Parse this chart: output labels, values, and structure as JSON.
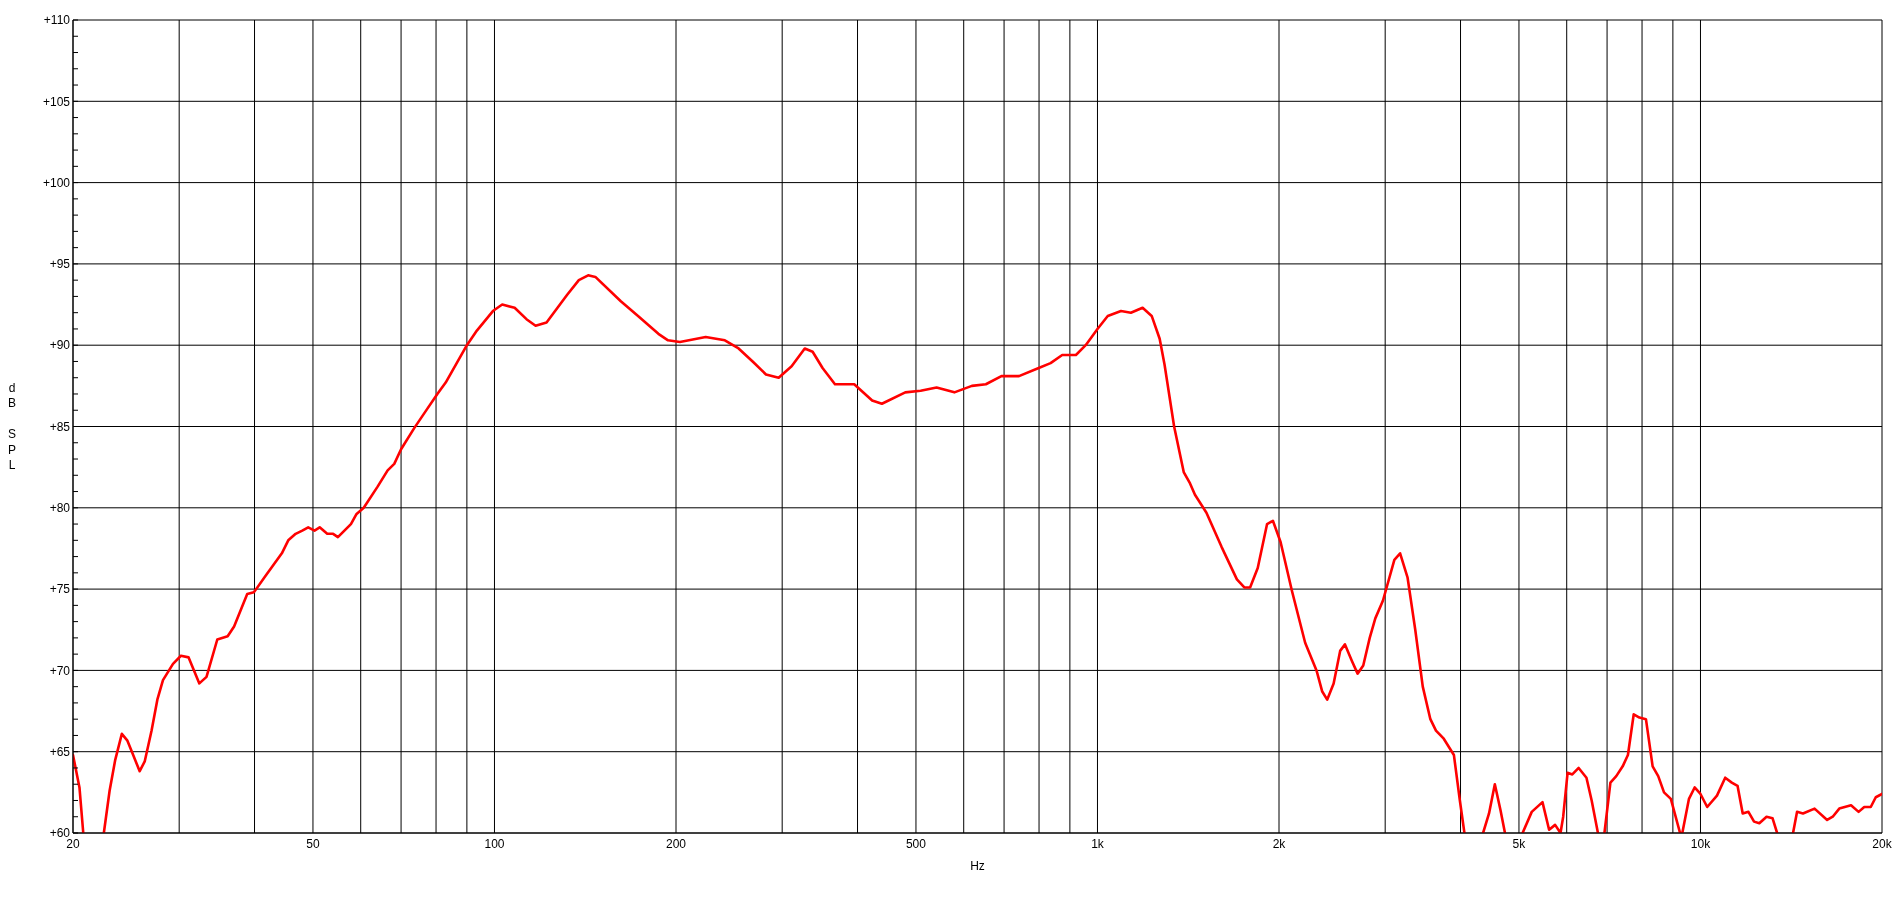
{
  "chart_data": {
    "type": "line",
    "xlabel": "Hz",
    "ylabel": "dB SPL",
    "log": "x",
    "grid": true,
    "xlim": [
      20,
      20000
    ],
    "ylim": [
      60,
      110
    ],
    "xticks": [
      20,
      {
        "value": 30,
        "label": null
      },
      {
        "value": 40,
        "label": null
      },
      50,
      {
        "value": 60,
        "label": null
      },
      {
        "value": 70,
        "label": null
      },
      {
        "value": 80,
        "label": null
      },
      {
        "value": 90,
        "label": null
      },
      100,
      200,
      {
        "value": 300,
        "label": null
      },
      {
        "value": 400,
        "label": null
      },
      500,
      {
        "value": 600,
        "label": null
      },
      {
        "value": 700,
        "label": null
      },
      {
        "value": 800,
        "label": null
      },
      {
        "value": 900,
        "label": null
      },
      {
        "value": 1000,
        "label": "1k"
      },
      {
        "value": 2000,
        "label": "2k"
      },
      {
        "value": 3000,
        "label": null
      },
      {
        "value": 4000,
        "label": null
      },
      {
        "value": 5000,
        "label": "5k"
      },
      {
        "value": 6000,
        "label": null
      },
      {
        "value": 7000,
        "label": null
      },
      {
        "value": 8000,
        "label": null
      },
      {
        "value": 9000,
        "label": null
      },
      {
        "value": 10000,
        "label": "10k"
      },
      {
        "value": 20000,
        "label": "20k"
      }
    ],
    "yticks": [
      {
        "value": 60,
        "label": "+60"
      },
      {
        "value": 61,
        "label": null
      },
      {
        "value": 62,
        "label": null
      },
      {
        "value": 63,
        "label": null
      },
      {
        "value": 64,
        "label": null
      },
      {
        "value": 65,
        "label": "+65"
      },
      {
        "value": 66,
        "label": null
      },
      {
        "value": 67,
        "label": null
      },
      {
        "value": 68,
        "label": null
      },
      {
        "value": 69,
        "label": null
      },
      {
        "value": 70,
        "label": "+70"
      },
      {
        "value": 71,
        "label": null
      },
      {
        "value": 72,
        "label": null
      },
      {
        "value": 73,
        "label": null
      },
      {
        "value": 74,
        "label": null
      },
      {
        "value": 75,
        "label": "+75"
      },
      {
        "value": 76,
        "label": null
      },
      {
        "value": 77,
        "label": null
      },
      {
        "value": 78,
        "label": null
      },
      {
        "value": 79,
        "label": null
      },
      {
        "value": 80,
        "label": "+80"
      },
      {
        "value": 81,
        "label": null
      },
      {
        "value": 82,
        "label": null
      },
      {
        "value": 83,
        "label": null
      },
      {
        "value": 84,
        "label": null
      },
      {
        "value": 85,
        "label": "+85"
      },
      {
        "value": 86,
        "label": null
      },
      {
        "value": 87,
        "label": null
      },
      {
        "value": 88,
        "label": null
      },
      {
        "value": 89,
        "label": null
      },
      {
        "value": 90,
        "label": "+90"
      },
      {
        "value": 91,
        "label": null
      },
      {
        "value": 92,
        "label": null
      },
      {
        "value": 93,
        "label": null
      },
      {
        "value": 94,
        "label": null
      },
      {
        "value": 95,
        "label": "+95"
      },
      {
        "value": 96,
        "label": null
      },
      {
        "value": 97,
        "label": null
      },
      {
        "value": 98,
        "label": null
      },
      {
        "value": 99,
        "label": null
      },
      {
        "value": 100,
        "label": "+100"
      },
      {
        "value": 101,
        "label": null
      },
      {
        "value": 102,
        "label": null
      },
      {
        "value": 103,
        "label": null
      },
      {
        "value": 104,
        "label": null
      },
      {
        "value": 105,
        "label": "+105"
      },
      {
        "value": 106,
        "label": null
      },
      {
        "value": 107,
        "label": null
      },
      {
        "value": 108,
        "label": null
      },
      {
        "value": 109,
        "label": null
      },
      {
        "value": 110,
        "label": "+110"
      }
    ],
    "x": [
      20,
      20.5,
      20.8,
      21.6,
      22.5,
      23,
      23.5,
      24.1,
      24.6,
      25.1,
      25.8,
      26.3,
      27,
      27.6,
      28.2,
      29.3,
      30.2,
      31.1,
      32.4,
      33.3,
      34.7,
      36.1,
      37,
      38.9,
      39.9,
      41.7,
      44.4,
      45.5,
      46.8,
      48,
      49.1,
      50.3,
      51.3,
      52.8,
      54,
      55,
      57.8,
      59,
      60.7,
      64,
      66.5,
      68.2,
      70,
      73.6,
      77.4,
      80.4,
      83,
      90,
      93.5,
      99.4,
      103,
      108,
      113,
      117,
      122,
      132,
      138,
      143,
      147,
      162,
      173,
      187,
      194,
      203,
      224,
      241,
      254,
      268,
      282,
      296,
      311,
      327,
      337,
      350,
      367,
      395,
      423,
      439,
      480,
      509,
      541,
      579,
      619,
      653,
      693,
      741,
      799,
      836,
      874,
      921,
      956,
      1000,
      1040,
      1094,
      1136,
      1188,
      1230,
      1268,
      1292,
      1340,
      1390,
      1424,
      1451,
      1516,
      1606,
      1703,
      1752,
      1791,
      1844,
      1911,
      1954,
      2012,
      2101,
      2210,
      2308,
      2359,
      2404,
      2464,
      2526,
      2573,
      2641,
      2700,
      2759,
      2828,
      2889,
      2975,
      3107,
      3176,
      3268,
      3365,
      3463,
      3565,
      3642,
      3752,
      3900,
      3990,
      4060,
      4200,
      4360,
      4460,
      4560,
      4660,
      4740,
      4900,
      5070,
      5250,
      5470,
      5610,
      5740,
      5860,
      5920,
      6020,
      6130,
      6280,
      6470,
      6600,
      6760,
      6850,
      6930,
      7090,
      7250,
      7430,
      7580,
      7750,
      7920,
      8120,
      8330,
      8510,
      8700,
      8930,
      9250,
      9330,
      9570,
      9780,
      10000,
      10260,
      10650,
      10990,
      11270,
      11520,
      11750,
      12010,
      12270,
      12520,
      12870,
      13170,
      13400,
      13800,
      14240,
      14460,
      14790,
      15460,
      16220,
      16570,
      16990,
      17770,
      18290,
      18690,
      19160,
      19530,
      20000
    ],
    "series": [
      {
        "color": "#ff0000",
        "values": [
          64.8,
          62.8,
          60,
          null,
          60,
          62.6,
          64.5,
          66.1,
          65.7,
          64.9,
          63.8,
          64.4,
          66.3,
          68.2,
          69.4,
          70.4,
          70.9,
          70.8,
          69.2,
          69.6,
          71.9,
          72.1,
          72.7,
          74.7,
          74.8,
          75.8,
          77.2,
          78.0,
          78.4,
          78.6,
          78.8,
          78.6,
          78.8,
          78.4,
          78.4,
          78.2,
          79.0,
          79.6,
          80.0,
          81.3,
          82.3,
          82.7,
          83.6,
          84.9,
          86.1,
          87.0,
          87.7,
          90.0,
          90.9,
          92.1,
          92.5,
          92.3,
          91.6,
          91.2,
          91.4,
          93.1,
          94.0,
          94.3,
          94.2,
          92.7,
          91.8,
          90.7,
          90.3,
          90.2,
          90.5,
          90.3,
          89.8,
          89.0,
          88.2,
          88.0,
          88.7,
          89.8,
          89.6,
          88.6,
          87.6,
          87.6,
          86.6,
          86.4,
          87.1,
          87.2,
          87.4,
          87.1,
          87.5,
          87.6,
          88.1,
          88.1,
          88.6,
          88.9,
          89.4,
          89.4,
          90.0,
          91.0,
          91.8,
          92.1,
          92.0,
          92.3,
          91.8,
          90.4,
          88.8,
          85.0,
          82.2,
          81.5,
          80.8,
          79.7,
          77.6,
          75.6,
          75.1,
          75.1,
          76.3,
          79.0,
          79.2,
          77.9,
          74.9,
          71.7,
          70.0,
          68.7,
          68.2,
          69.2,
          71.2,
          71.6,
          70.6,
          69.8,
          70.3,
          72.0,
          73.2,
          74.3,
          76.8,
          77.2,
          75.7,
          72.5,
          69.0,
          67.0,
          66.3,
          65.8,
          64.8,
          62.0,
          60,
          null,
          60,
          61.2,
          63.0,
          61.4,
          60,
          null,
          60,
          61.3,
          61.9,
          60.2,
          60.5,
          60,
          61.0,
          63.7,
          63.6,
          64.0,
          63.4,
          62.0,
          60,
          null,
          60,
          63.1,
          63.5,
          64.1,
          64.8,
          67.3,
          67.1,
          67.0,
          64.1,
          63.5,
          62.5,
          62.1,
          60,
          60,
          62.1,
          62.8,
          62.4,
          61.6,
          62.3,
          63.4,
          63.1,
          62.9,
          61.2,
          61.3,
          60.7,
          60.6,
          61.0,
          60.9,
          60,
          null,
          60,
          61.3,
          61.2,
          61.5,
          60.8,
          61.0,
          61.5,
          61.7,
          61.3,
          61.6,
          61.6,
          62.2,
          62.4
        ]
      }
    ]
  }
}
